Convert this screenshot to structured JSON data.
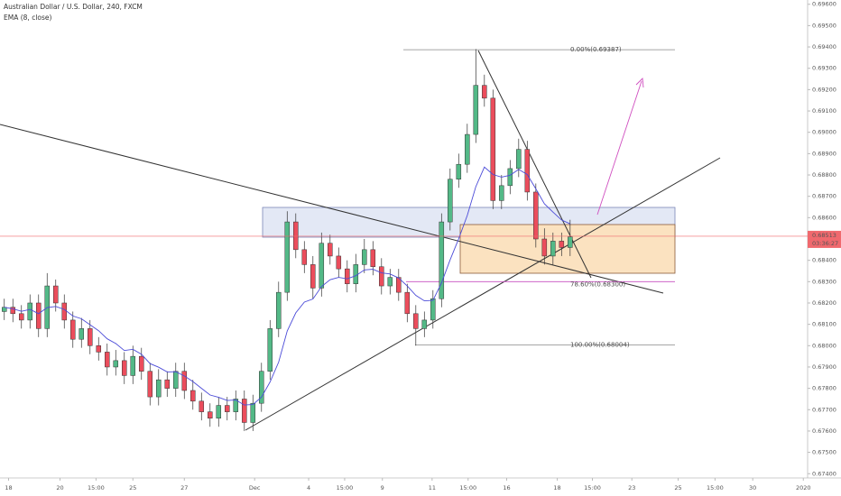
{
  "chart_data": {
    "type": "candlestick",
    "title": "Australian Dollar / U.S. Dollar, 240, FXCM",
    "candles": {
      "up_color": "#53b987",
      "down_color": "#eb4d5c",
      "open": [
        0.6816,
        0.6818,
        0.6815,
        0.6812,
        0.682,
        0.6808,
        0.6828,
        0.682,
        0.6812,
        0.6803,
        0.6808,
        0.68,
        0.6797,
        0.679,
        0.6793,
        0.6786,
        0.6795,
        0.6788,
        0.6776,
        0.6784,
        0.678,
        0.6788,
        0.6779,
        0.6774,
        0.6769,
        0.6766,
        0.6772,
        0.6769,
        0.6775,
        0.6764,
        0.6773,
        0.6788,
        0.6808,
        0.6825,
        0.6858,
        0.6845,
        0.6838,
        0.6827,
        0.6848,
        0.6842,
        0.6836,
        0.6829,
        0.6838,
        0.6845,
        0.6837,
        0.6828,
        0.6832,
        0.6825,
        0.6815,
        0.6808,
        0.6812,
        0.6822,
        0.6858,
        0.6878,
        0.6885,
        0.6899,
        0.6922,
        0.6916,
        0.6868,
        0.6875,
        0.6883,
        0.6892,
        0.6872,
        0.685,
        0.6842,
        0.6849,
        0.6846
      ],
      "high": [
        0.6822,
        0.6822,
        0.6819,
        0.6824,
        0.6824,
        0.6834,
        0.6831,
        0.6824,
        0.6816,
        0.6813,
        0.6812,
        0.6804,
        0.6801,
        0.6798,
        0.6797,
        0.68,
        0.6799,
        0.6792,
        0.6789,
        0.6788,
        0.6792,
        0.6792,
        0.6784,
        0.6778,
        0.6773,
        0.6776,
        0.6776,
        0.6779,
        0.6779,
        0.6777,
        0.6792,
        0.6812,
        0.683,
        0.6863,
        0.6862,
        0.6849,
        0.6842,
        0.6853,
        0.6852,
        0.6846,
        0.684,
        0.6843,
        0.685,
        0.6849,
        0.6841,
        0.6836,
        0.6836,
        0.6829,
        0.6819,
        0.6816,
        0.6826,
        0.6862,
        0.6883,
        0.689,
        0.6904,
        0.6939,
        0.6927,
        0.692,
        0.688,
        0.6887,
        0.6897,
        0.6896,
        0.6876,
        0.6855,
        0.6853,
        0.6853,
        0.6859
      ],
      "low": [
        0.6812,
        0.6811,
        0.6808,
        0.6808,
        0.6804,
        0.6804,
        0.6816,
        0.6808,
        0.6799,
        0.6799,
        0.6796,
        0.6793,
        0.6786,
        0.6786,
        0.6782,
        0.6782,
        0.6784,
        0.6772,
        0.6772,
        0.6776,
        0.6776,
        0.6775,
        0.677,
        0.6765,
        0.6762,
        0.6762,
        0.6765,
        0.6765,
        0.676,
        0.676,
        0.6769,
        0.6784,
        0.6804,
        0.6821,
        0.6841,
        0.6834,
        0.6822,
        0.6823,
        0.6838,
        0.6832,
        0.6825,
        0.6825,
        0.6834,
        0.6833,
        0.6824,
        0.6824,
        0.6821,
        0.6811,
        0.68,
        0.6804,
        0.6808,
        0.6818,
        0.6854,
        0.6874,
        0.6881,
        0.6895,
        0.6912,
        0.6864,
        0.6864,
        0.6871,
        0.6879,
        0.6868,
        0.6846,
        0.6838,
        0.6838,
        0.6842,
        0.6842
      ],
      "close": [
        0.6818,
        0.6815,
        0.6812,
        0.682,
        0.6808,
        0.6828,
        0.682,
        0.6812,
        0.6803,
        0.6808,
        0.68,
        0.6797,
        0.679,
        0.6793,
        0.6786,
        0.6795,
        0.6788,
        0.6776,
        0.6784,
        0.678,
        0.6788,
        0.6779,
        0.6774,
        0.6769,
        0.6766,
        0.6772,
        0.6769,
        0.6775,
        0.6764,
        0.6773,
        0.6788,
        0.6808,
        0.6825,
        0.6858,
        0.6845,
        0.6838,
        0.6827,
        0.6848,
        0.6842,
        0.6836,
        0.6829,
        0.6838,
        0.6845,
        0.6837,
        0.6828,
        0.6832,
        0.6825,
        0.6815,
        0.6808,
        0.6812,
        0.6822,
        0.6858,
        0.6878,
        0.6885,
        0.6899,
        0.6922,
        0.6916,
        0.6868,
        0.6875,
        0.6883,
        0.6892,
        0.6872,
        0.685,
        0.6842,
        0.6849,
        0.6846,
        0.6851
      ]
    },
    "ema": {
      "name": "EMA (8, close)",
      "color": "#4b4bd8",
      "values": [
        0.6818,
        0.68173,
        0.68161,
        0.6817,
        0.6815,
        0.68179,
        0.68184,
        0.6817,
        0.68139,
        0.68126,
        0.68098,
        0.6807,
        0.68032,
        0.6801,
        0.67977,
        0.67983,
        0.6796,
        0.67916,
        0.67899,
        0.67877,
        0.67878,
        0.67858,
        0.67832,
        0.678,
        0.67769,
        0.67758,
        0.67743,
        0.67745,
        0.67722,
        0.67724,
        0.67759,
        0.6783,
        0.67923,
        0.68069,
        0.68154,
        0.68204,
        0.68219,
        0.68277,
        0.68309,
        0.6832,
        0.68313,
        0.68328,
        0.68355,
        0.68358,
        0.68341,
        0.68336,
        0.68317,
        0.6828,
        0.68236,
        0.6821,
        0.68212,
        0.68294,
        0.68402,
        0.68501,
        0.6861,
        0.68745,
        0.68837,
        0.68802,
        0.6879,
        0.68799,
        0.68826,
        0.68802,
        0.68735,
        0.68665,
        0.68626,
        0.68589,
        0.68571
      ]
    },
    "last_price": 0.68513,
    "last_price_color": "#f0696e",
    "countdown": "03:36:27",
    "fib_levels": [
      {
        "text": "0.00%(0.69387)",
        "value": 0.69387
      },
      {
        "text": "78.60%(0.68300)",
        "value": 0.683
      },
      {
        "text": "100.00%(0.68004)",
        "value": 0.68004
      }
    ],
    "xlim": [
      -0.5,
      93.7
    ],
    "xticks": [
      {
        "value": 0.5,
        "label": "18"
      },
      {
        "value": 6.5,
        "label": "20"
      },
      {
        "value": 10.7,
        "label": "15:00"
      },
      {
        "value": 15,
        "label": "25"
      },
      {
        "value": 21,
        "label": "27"
      },
      {
        "value": 29.2,
        "label": "Dec"
      },
      {
        "value": 35.5,
        "label": "4"
      },
      {
        "value": 39.7,
        "label": "15:00"
      },
      {
        "value": 44.1,
        "label": "9"
      },
      {
        "value": 49.9,
        "label": "11"
      },
      {
        "value": 54.1,
        "label": "15:00"
      },
      {
        "value": 58.6,
        "label": "16"
      },
      {
        "value": 64.5,
        "label": "18"
      },
      {
        "value": 68.6,
        "label": "15:00"
      },
      {
        "value": 73.2,
        "label": "23"
      },
      {
        "value": 78.6,
        "label": "25"
      },
      {
        "value": 82.9,
        "label": "15:00"
      },
      {
        "value": 87.3,
        "label": "30"
      },
      {
        "value": 93.2,
        "label": "2020"
      }
    ],
    "ylim": [
      0.6738,
      0.6962
    ],
    "yticks": [
      {
        "value": 0.674,
        "label": "0.67400"
      },
      {
        "value": 0.675,
        "label": "0.67500"
      },
      {
        "value": 0.676,
        "label": "0.67600"
      },
      {
        "value": 0.677,
        "label": "0.67700"
      },
      {
        "value": 0.678,
        "label": "0.67800"
      },
      {
        "value": 0.679,
        "label": "0.67900"
      },
      {
        "value": 0.68,
        "label": "0.68000"
      },
      {
        "value": 0.681,
        "label": "0.68100"
      },
      {
        "value": 0.682,
        "label": "0.68200"
      },
      {
        "value": 0.683,
        "label": "0.68300"
      },
      {
        "value": 0.684,
        "label": "0.68400"
      },
      {
        "value": 0.685,
        "label": "0.68500"
      },
      {
        "value": 0.686,
        "label": "0.68600"
      },
      {
        "value": 0.687,
        "label": "0.68700"
      },
      {
        "value": 0.688,
        "label": "0.68800"
      },
      {
        "value": 0.689,
        "label": "0.68900"
      },
      {
        "value": 0.69,
        "label": "0.69000"
      },
      {
        "value": 0.691,
        "label": "0.69100"
      },
      {
        "value": 0.692,
        "label": "0.69200"
      },
      {
        "value": 0.693,
        "label": "0.69300"
      },
      {
        "value": 0.694,
        "label": "0.69400"
      },
      {
        "value": 0.695,
        "label": "0.69500"
      },
      {
        "value": 0.696,
        "label": "0.69600"
      }
    ]
  }
}
